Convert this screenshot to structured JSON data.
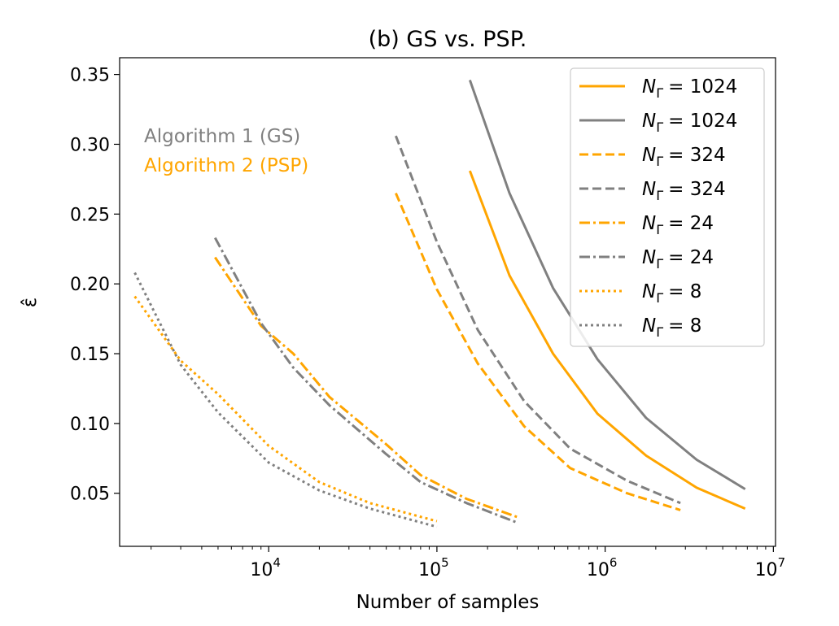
{
  "chart_data": {
    "type": "line",
    "title": "(b) GS vs. PSP.",
    "xlabel": "Number of samples",
    "ylabel": "ε̂",
    "xscale": "log",
    "xlim": [
      1300,
      10300000
    ],
    "ylim": [
      0.012,
      0.362
    ],
    "xticks": [
      {
        "value": 10000,
        "base": "10",
        "exp": "4"
      },
      {
        "value": 100000,
        "base": "10",
        "exp": "5"
      },
      {
        "value": 1000000,
        "base": "10",
        "exp": "6"
      },
      {
        "value": 10000000,
        "base": "10",
        "exp": "7"
      }
    ],
    "yticks": [
      {
        "value": 0.05,
        "label": "0.05"
      },
      {
        "value": 0.1,
        "label": "0.10"
      },
      {
        "value": 0.15,
        "label": "0.15"
      },
      {
        "value": 0.2,
        "label": "0.20"
      },
      {
        "value": 0.25,
        "label": "0.25"
      },
      {
        "value": 0.3,
        "label": "0.30"
      },
      {
        "value": 0.35,
        "label": "0.35"
      }
    ],
    "grid": false,
    "legend_position": "top-right",
    "annotations": [
      {
        "text": "Algorithm 1 (GS)",
        "color": "#808080"
      },
      {
        "text": "Algorithm 2 (PSP)",
        "color": "#FFA500"
      }
    ],
    "series": [
      {
        "legend_symbol": "N",
        "legend_sub": "Γ",
        "legend_value": "= 1024",
        "color": "#FFA500",
        "dash": "solid",
        "x": [
          157000,
          270000,
          490000,
          900000,
          1750000,
          3500000,
          6800000
        ],
        "y": [
          0.281,
          0.206,
          0.15,
          0.107,
          0.077,
          0.054,
          0.039
        ]
      },
      {
        "legend_symbol": "N",
        "legend_sub": "Γ",
        "legend_value": "= 1024",
        "color": "#808080",
        "dash": "solid",
        "x": [
          157000,
          270000,
          490000,
          900000,
          1750000,
          3500000,
          6800000
        ],
        "y": [
          0.346,
          0.265,
          0.197,
          0.146,
          0.104,
          0.074,
          0.053
        ]
      },
      {
        "legend_symbol": "N",
        "legend_sub": "Γ",
        "legend_value": "= 324",
        "color": "#FFA500",
        "dash": "dashed",
        "x": [
          57000,
          100000,
          175000,
          330000,
          620000,
          1350000,
          2800000
        ],
        "y": [
          0.265,
          0.196,
          0.143,
          0.098,
          0.068,
          0.05,
          0.038
        ]
      },
      {
        "legend_symbol": "N",
        "legend_sub": "Γ",
        "legend_value": "= 324",
        "color": "#808080",
        "dash": "dashed",
        "x": [
          57000,
          100000,
          175000,
          330000,
          620000,
          1350000,
          2800000
        ],
        "y": [
          0.306,
          0.23,
          0.167,
          0.116,
          0.082,
          0.059,
          0.043
        ]
      },
      {
        "legend_symbol": "N",
        "legend_sub": "Γ",
        "legend_value": "= 24",
        "color": "#FFA500",
        "dash": "dashdot",
        "x": [
          4800,
          9000,
          14000,
          23000,
          50000,
          80000,
          150000,
          300000
        ],
        "y": [
          0.219,
          0.17,
          0.15,
          0.119,
          0.085,
          0.063,
          0.046,
          0.033
        ]
      },
      {
        "legend_symbol": "N",
        "legend_sub": "Γ",
        "legend_value": "= 24",
        "color": "#808080",
        "dash": "dashdot",
        "x": [
          4800,
          9000,
          14000,
          23000,
          50000,
          80000,
          150000,
          300000
        ],
        "y": [
          0.233,
          0.172,
          0.14,
          0.113,
          0.078,
          0.058,
          0.043,
          0.029
        ]
      },
      {
        "legend_symbol": "N",
        "legend_sub": "Γ",
        "legend_value": "= 8",
        "color": "#FFA500",
        "dash": "dotted",
        "x": [
          1600,
          3000,
          5000,
          10000,
          20000,
          40000,
          100000
        ],
        "y": [
          0.191,
          0.145,
          0.121,
          0.084,
          0.058,
          0.043,
          0.03
        ]
      },
      {
        "legend_symbol": "N",
        "legend_sub": "Γ",
        "legend_value": "= 8",
        "color": "#808080",
        "dash": "dotted",
        "x": [
          1600,
          3000,
          5000,
          10000,
          20000,
          40000,
          100000
        ],
        "y": [
          0.208,
          0.142,
          0.108,
          0.072,
          0.052,
          0.039,
          0.026
        ]
      }
    ]
  }
}
